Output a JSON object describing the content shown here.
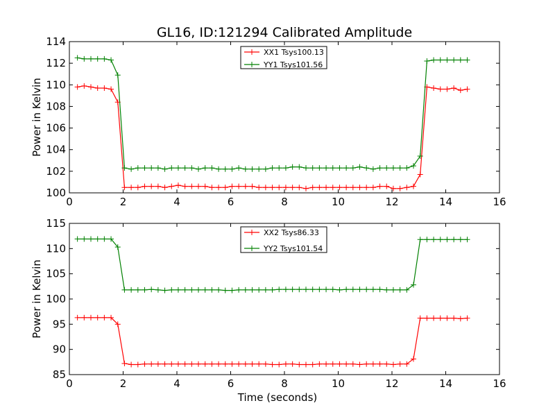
{
  "title": "GL16, ID:121294 Calibrated Amplitude",
  "chart_data": [
    {
      "type": "line",
      "ylabel": "Power in Kelvin",
      "xlabel": "",
      "xlim": [
        0,
        16
      ],
      "ylim": [
        100,
        114
      ],
      "xticks": [
        0,
        2,
        4,
        6,
        8,
        10,
        12,
        14,
        16
      ],
      "yticks": [
        100,
        102,
        104,
        106,
        108,
        110,
        112,
        114
      ],
      "legend_position": "top-center",
      "x": [
        0.3,
        0.55,
        0.8,
        1.05,
        1.3,
        1.55,
        1.8,
        2.05,
        2.3,
        2.55,
        2.8,
        3.05,
        3.3,
        3.55,
        3.8,
        4.05,
        4.3,
        4.55,
        4.8,
        5.05,
        5.3,
        5.55,
        5.8,
        6.05,
        6.3,
        6.55,
        6.8,
        7.05,
        7.3,
        7.55,
        7.8,
        8.05,
        8.3,
        8.55,
        8.8,
        9.05,
        9.3,
        9.55,
        9.8,
        10.05,
        10.3,
        10.55,
        10.8,
        11.05,
        11.3,
        11.55,
        11.8,
        12.05,
        12.3,
        12.55,
        12.8,
        13.05,
        13.3,
        13.55,
        13.8,
        14.05,
        14.3,
        14.55,
        14.8
      ],
      "series": [
        {
          "name": "XX1 Tsys100.13",
          "color": "#ff0000",
          "values": [
            109.8,
            109.9,
            109.8,
            109.7,
            109.7,
            109.6,
            108.4,
            100.5,
            100.5,
            100.5,
            100.6,
            100.6,
            100.6,
            100.5,
            100.6,
            100.7,
            100.6,
            100.6,
            100.6,
            100.6,
            100.5,
            100.5,
            100.5,
            100.6,
            100.6,
            100.6,
            100.6,
            100.5,
            100.5,
            100.5,
            100.5,
            100.5,
            100.5,
            100.5,
            100.4,
            100.5,
            100.5,
            100.5,
            100.5,
            100.5,
            100.5,
            100.5,
            100.5,
            100.5,
            100.5,
            100.6,
            100.6,
            100.4,
            100.4,
            100.5,
            100.6,
            101.7,
            109.8,
            109.7,
            109.6,
            109.6,
            109.7,
            109.5,
            109.6
          ]
        },
        {
          "name": "YY1 Tsys101.56",
          "color": "#008000",
          "values": [
            112.5,
            112.4,
            112.4,
            112.4,
            112.4,
            112.3,
            110.9,
            102.3,
            102.2,
            102.3,
            102.3,
            102.3,
            102.3,
            102.2,
            102.3,
            102.3,
            102.3,
            102.3,
            102.2,
            102.3,
            102.3,
            102.2,
            102.2,
            102.2,
            102.3,
            102.2,
            102.2,
            102.2,
            102.2,
            102.3,
            102.3,
            102.3,
            102.4,
            102.4,
            102.3,
            102.3,
            102.3,
            102.3,
            102.3,
            102.3,
            102.3,
            102.3,
            102.4,
            102.3,
            102.2,
            102.3,
            102.3,
            102.3,
            102.3,
            102.3,
            102.5,
            103.4,
            112.2,
            112.3,
            112.3,
            112.3,
            112.3,
            112.3,
            112.3
          ]
        }
      ]
    },
    {
      "type": "line",
      "ylabel": "Power in Kelvin",
      "xlabel": "Time (seconds)",
      "xlim": [
        0,
        16
      ],
      "ylim": [
        85,
        115
      ],
      "xticks": [
        0,
        2,
        4,
        6,
        8,
        10,
        12,
        14,
        16
      ],
      "yticks": [
        85,
        90,
        95,
        100,
        105,
        110,
        115
      ],
      "legend_position": "top-center",
      "x": [
        0.3,
        0.55,
        0.8,
        1.05,
        1.3,
        1.55,
        1.8,
        2.05,
        2.3,
        2.55,
        2.8,
        3.05,
        3.3,
        3.55,
        3.8,
        4.05,
        4.3,
        4.55,
        4.8,
        5.05,
        5.3,
        5.55,
        5.8,
        6.05,
        6.3,
        6.55,
        6.8,
        7.05,
        7.3,
        7.55,
        7.8,
        8.05,
        8.3,
        8.55,
        8.8,
        9.05,
        9.3,
        9.55,
        9.8,
        10.05,
        10.3,
        10.55,
        10.8,
        11.05,
        11.3,
        11.55,
        11.8,
        12.05,
        12.3,
        12.55,
        12.8,
        13.05,
        13.3,
        13.55,
        13.8,
        14.05,
        14.3,
        14.55,
        14.8
      ],
      "series": [
        {
          "name": "XX2 Tsys86.33",
          "color": "#ff0000",
          "values": [
            96.3,
            96.3,
            96.3,
            96.3,
            96.3,
            96.3,
            95.0,
            87.2,
            87.0,
            87.0,
            87.1,
            87.1,
            87.1,
            87.1,
            87.1,
            87.1,
            87.1,
            87.1,
            87.1,
            87.1,
            87.1,
            87.1,
            87.1,
            87.1,
            87.1,
            87.1,
            87.1,
            87.1,
            87.1,
            87.0,
            87.0,
            87.1,
            87.1,
            87.0,
            87.0,
            87.0,
            87.1,
            87.1,
            87.1,
            87.1,
            87.1,
            87.1,
            87.0,
            87.1,
            87.1,
            87.1,
            87.1,
            87.0,
            87.1,
            87.1,
            88.1,
            96.2,
            96.2,
            96.2,
            96.2,
            96.2,
            96.2,
            96.1,
            96.2
          ]
        },
        {
          "name": "YY2 Tsys101.54",
          "color": "#008000",
          "values": [
            111.9,
            111.9,
            111.9,
            111.9,
            111.9,
            111.9,
            110.3,
            101.8,
            101.8,
            101.8,
            101.8,
            101.9,
            101.8,
            101.7,
            101.8,
            101.8,
            101.8,
            101.8,
            101.8,
            101.8,
            101.8,
            101.8,
            101.7,
            101.7,
            101.8,
            101.8,
            101.8,
            101.8,
            101.8,
            101.8,
            101.9,
            101.9,
            101.9,
            101.9,
            101.9,
            101.9,
            101.9,
            101.9,
            101.9,
            101.8,
            101.9,
            101.9,
            101.9,
            101.9,
            101.9,
            101.9,
            101.8,
            101.8,
            101.8,
            101.8,
            102.8,
            111.8,
            111.8,
            111.8,
            111.8,
            111.8,
            111.8,
            111.8,
            111.8
          ]
        }
      ]
    }
  ]
}
